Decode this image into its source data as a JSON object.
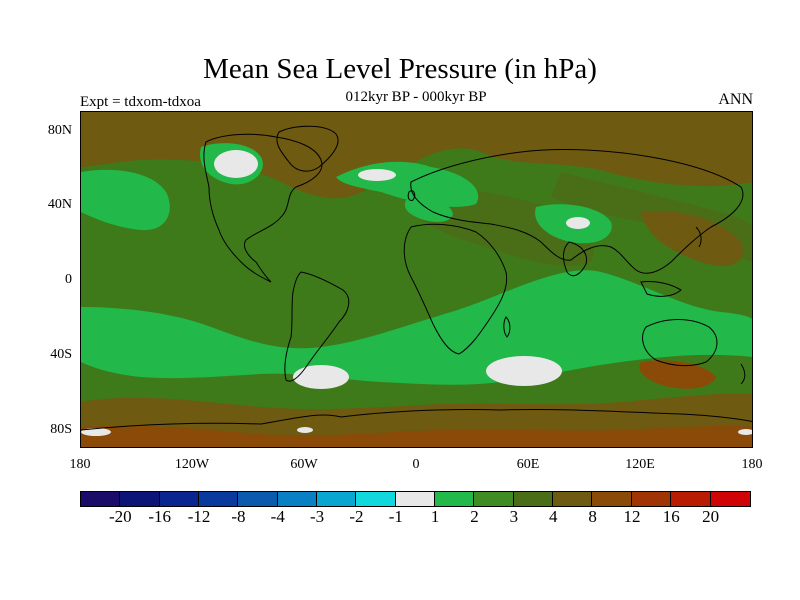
{
  "header": {
    "title": "Mean Sea Level Pressure (in hPa)",
    "subtitle": "012kyr BP - 000kyr BP",
    "left_label": "Expt = tdxom-tdxoa",
    "right_label": "ANN"
  },
  "axes": {
    "lat_ticks": [
      "80N",
      "40N",
      "0",
      "40S",
      "80S"
    ],
    "lon_ticks": [
      "180",
      "120W",
      "60W",
      "0",
      "60E",
      "120E",
      "180"
    ]
  },
  "colorbar": {
    "colors": [
      "#1c0c6a",
      "#0c1478",
      "#0a2590",
      "#0a3a9e",
      "#0a5aae",
      "#0a80c4",
      "#0aa6d2",
      "#10d8dc",
      "#e8e8e8",
      "#22b84a",
      "#3f8c24",
      "#4a6e18",
      "#6e5a10",
      "#8a4a08",
      "#a03404",
      "#b81c02",
      "#d00404"
    ],
    "labels": [
      "-20",
      "-16",
      "-12",
      "-8",
      "-4",
      "-3",
      "-2",
      "-1",
      "1",
      "2",
      "3",
      "4",
      "8",
      "12",
      "16",
      "20"
    ]
  },
  "map": {
    "colors": {
      "base": "#3f7a1a",
      "green_light": "#22b84a",
      "olive": "#4a6e18",
      "brown": "#6e5a10",
      "rust": "#8a4a08",
      "white": "#e8e8e8"
    }
  }
}
